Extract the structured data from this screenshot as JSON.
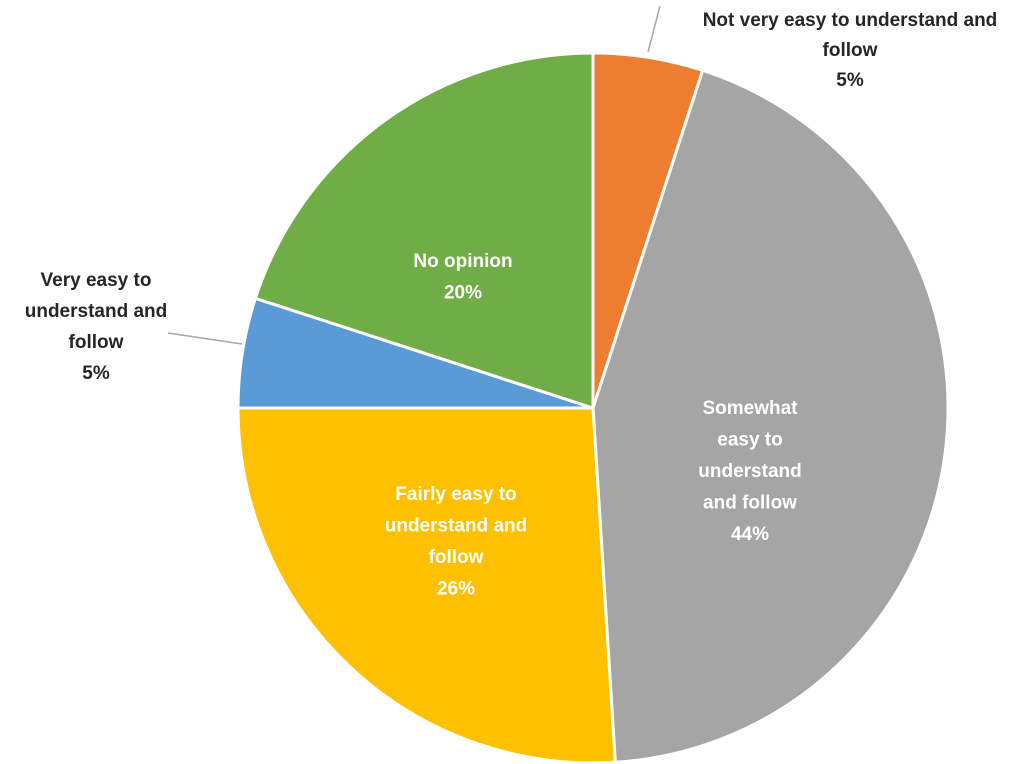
{
  "chart_data": {
    "type": "pie",
    "title": "",
    "series": [
      {
        "values": [
          5,
          44,
          26,
          5,
          20
        ]
      }
    ],
    "slices": [
      {
        "label_lines": [
          "Not very easy to understand and",
          "follow"
        ],
        "value": 5,
        "value_label": "5%",
        "color": "#ED7D31",
        "label_position": "outside"
      },
      {
        "label_lines": [
          "Somewhat",
          "easy to",
          "understand",
          "and follow"
        ],
        "value": 44,
        "value_label": "44%",
        "color": "#A5A5A5",
        "label_position": "inside"
      },
      {
        "label_lines": [
          "Fairly easy to",
          "understand and",
          "follow"
        ],
        "value": 26,
        "value_label": "26%",
        "color": "#FFC000",
        "label_position": "inside"
      },
      {
        "label_lines": [
          "Very easy to",
          "understand and",
          "follow"
        ],
        "value": 5,
        "value_label": "5%",
        "color": "#5B9BD5",
        "label_position": "outside"
      },
      {
        "label_lines": [
          "No opinion"
        ],
        "value": 20,
        "value_label": "20%",
        "color": "#70AD47",
        "label_position": "inside"
      }
    ],
    "start_angle": "12 o'clock",
    "direction": "clockwise",
    "legend": "none",
    "label_text_color_inside": "#FFFFFF",
    "label_text_color_outside": "#262626"
  }
}
